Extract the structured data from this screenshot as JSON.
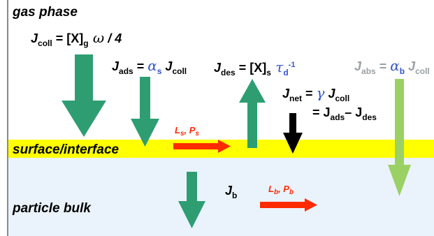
{
  "phases": {
    "gas": "gas phase",
    "surface": "surface/interface",
    "bulk": "particle bulk"
  },
  "fluxes": {
    "coll": {
      "sym": "J",
      "sub": "coll",
      "rhs_a": " = [X]",
      "rhs_sub": "g",
      "omega": " ω",
      "rhs_b": " / 4"
    },
    "ads": {
      "sym": "J",
      "sub": "ads",
      "eq": " = ",
      "alpha": "α",
      "alpha_sub": "s",
      "tail_sym": " J",
      "tail_sub": "coll"
    },
    "des": {
      "sym": "J",
      "sub": "des",
      "rhs_a": " = [X]",
      "rhs_sub": "s",
      "tau": " τ",
      "tau_sub": "d",
      "tau_sup": "-1"
    },
    "net": {
      "sym": "J",
      "sub": "net",
      "eq": " = ",
      "gamma": "γ",
      "tail_sym": " J",
      "tail_sub": "coll",
      "line2_eq": "= J",
      "line2_sub1": "ads",
      "line2_minus": "– J",
      "line2_sub2": "des"
    },
    "abs": {
      "sym": "J",
      "sub": "abs",
      "eq": " = ",
      "alpha": "α",
      "alpha_sub": "b",
      "tail_sym": " J",
      "tail_sub": "coll"
    },
    "bulk": {
      "sym": "J",
      "sub": "b"
    }
  },
  "transport": {
    "surface": {
      "l": "L",
      "l_sub": "s",
      "sep": ", ",
      "p": "P",
      "p_sub": "s"
    },
    "bulk": {
      "l": "L",
      "l_sub": "b",
      "sep": ", ",
      "p": "P",
      "p_sub": "b"
    }
  },
  "colors": {
    "dark_green": "#2e9e72",
    "light_green": "#9bd164",
    "red": "#ff2a00",
    "black": "#000000",
    "surface_band": "#ffff00",
    "bulk_band": "#eaf3fb",
    "alpha_blue": "#3355cc",
    "grey_text": "#9aa0a6"
  },
  "arrows": [
    {
      "name": "collision-arrow",
      "color": "dark_green",
      "direction": "down"
    },
    {
      "name": "adsorption-arrow",
      "color": "dark_green",
      "direction": "down"
    },
    {
      "name": "desorption-arrow",
      "color": "dark_green",
      "direction": "up"
    },
    {
      "name": "net-uptake-arrow",
      "color": "black",
      "direction": "down"
    },
    {
      "name": "absorption-arrow",
      "color": "light_green",
      "direction": "down"
    },
    {
      "name": "surface-transport-arrow",
      "color": "red",
      "direction": "right"
    },
    {
      "name": "bulk-flux-arrow",
      "color": "dark_green",
      "direction": "down"
    },
    {
      "name": "bulk-transport-arrow",
      "color": "red",
      "direction": "right"
    }
  ]
}
